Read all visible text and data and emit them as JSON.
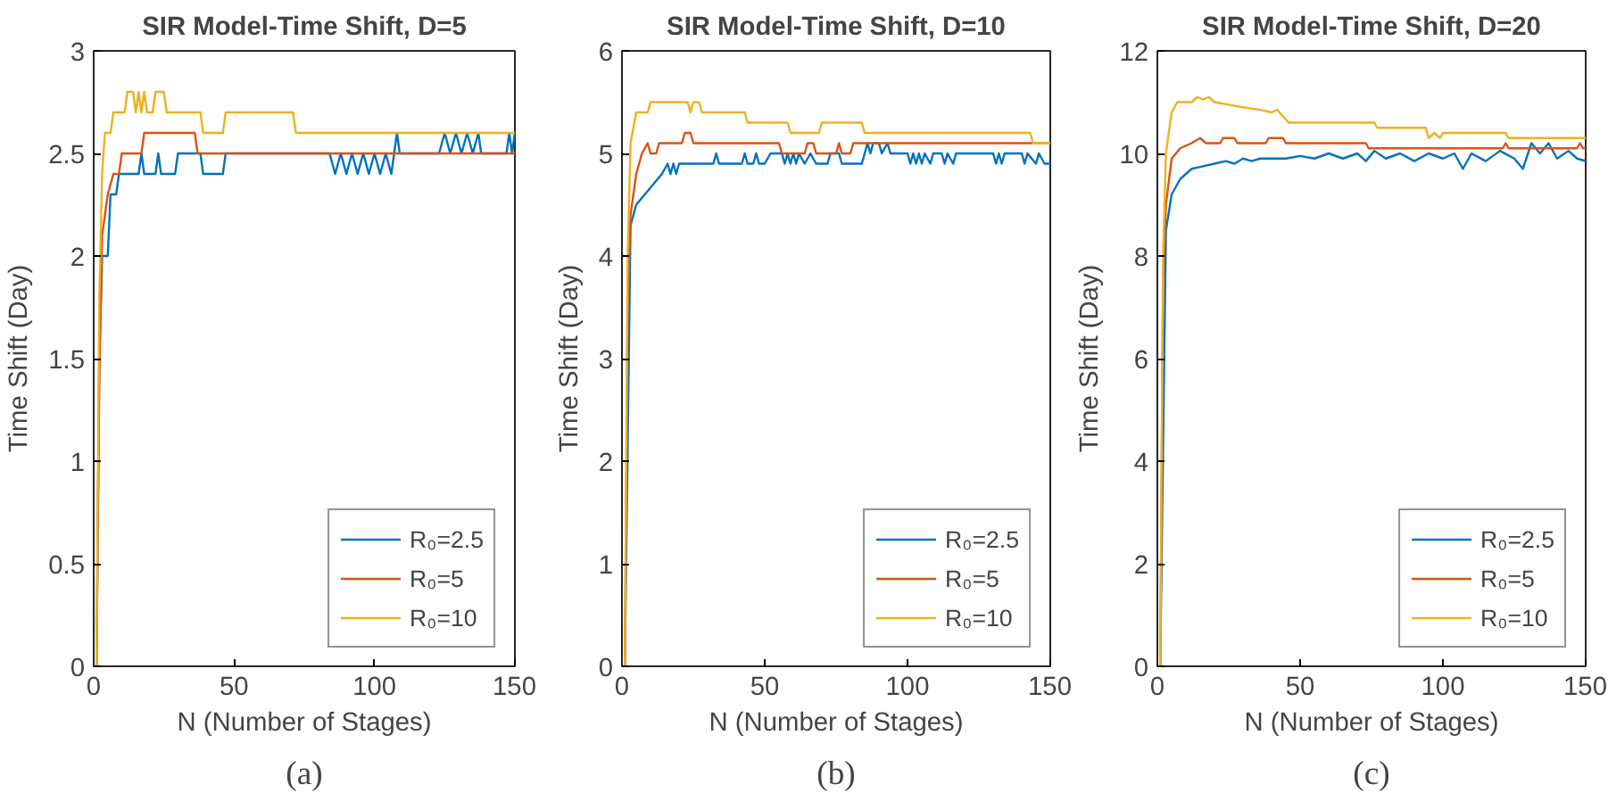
{
  "chart_data": [
    {
      "type": "line",
      "title": "SIR Model-Time Shift, D=5",
      "xlabel": "N (Number of Stages)",
      "ylabel": "Time Shift (Day)",
      "annotations": [
        "(a)"
      ],
      "xlim": [
        0,
        150
      ],
      "xticks": [
        0,
        50,
        100,
        150
      ],
      "ylim": [
        0,
        3
      ],
      "yticks": [
        0,
        0.5,
        1,
        1.5,
        2,
        2.5,
        3
      ],
      "grid": false,
      "legend": "bottom right",
      "marker": "none",
      "line_style": "solid",
      "series": [
        {
          "name": "R₀=2.5",
          "color": "#0072bd",
          "x": [
            1,
            2,
            3,
            5,
            6,
            8,
            9,
            16,
            17,
            18,
            22,
            23,
            24,
            29,
            30,
            38,
            39,
            46,
            47,
            84,
            86,
            88,
            90,
            92,
            94,
            96,
            98,
            100,
            102,
            104,
            106,
            107,
            108,
            109,
            123,
            125,
            127,
            129,
            131,
            133,
            135,
            137,
            138,
            147,
            148,
            149,
            150
          ],
          "values": [
            0,
            1.5,
            2.0,
            2.0,
            2.3,
            2.3,
            2.4,
            2.4,
            2.5,
            2.4,
            2.4,
            2.5,
            2.4,
            2.4,
            2.5,
            2.5,
            2.4,
            2.4,
            2.5,
            2.5,
            2.4,
            2.5,
            2.4,
            2.5,
            2.4,
            2.5,
            2.4,
            2.5,
            2.4,
            2.5,
            2.4,
            2.5,
            2.6,
            2.5,
            2.5,
            2.6,
            2.5,
            2.6,
            2.5,
            2.6,
            2.5,
            2.6,
            2.5,
            2.5,
            2.6,
            2.5,
            2.6
          ]
        },
        {
          "name": "R₀=5",
          "color": "#d95319",
          "x": [
            1,
            2,
            3,
            5,
            7,
            9,
            10,
            17,
            18,
            36,
            37,
            150
          ],
          "values": [
            0,
            1.4,
            2.1,
            2.3,
            2.4,
            2.4,
            2.5,
            2.5,
            2.6,
            2.6,
            2.5,
            2.5
          ]
        },
        {
          "name": "R₀=10",
          "color": "#edb120",
          "x": [
            1,
            2,
            3,
            4,
            6,
            7,
            11,
            12,
            14,
            15,
            16,
            17,
            18,
            19,
            21,
            22,
            25,
            26,
            38,
            39,
            46,
            47,
            71,
            72,
            150
          ],
          "values": [
            0,
            1.8,
            2.4,
            2.6,
            2.6,
            2.7,
            2.7,
            2.8,
            2.8,
            2.7,
            2.8,
            2.7,
            2.8,
            2.7,
            2.7,
            2.8,
            2.8,
            2.7,
            2.7,
            2.6,
            2.6,
            2.7,
            2.7,
            2.6,
            2.6
          ]
        }
      ]
    },
    {
      "type": "line",
      "title": "SIR Model-Time Shift, D=10",
      "xlabel": "N (Number of Stages)",
      "ylabel": "Time Shift (Day)",
      "annotations": [
        "(b)"
      ],
      "xlim": [
        0,
        150
      ],
      "xticks": [
        0,
        50,
        100,
        150
      ],
      "ylim": [
        0,
        6
      ],
      "yticks": [
        0,
        1,
        2,
        3,
        4,
        5,
        6
      ],
      "grid": false,
      "legend": "bottom right",
      "marker": "none",
      "line_style": "solid",
      "series": [
        {
          "name": "R₀=2.5",
          "color": "#0072bd",
          "x": [
            1,
            3,
            5,
            8,
            11,
            14,
            16,
            17,
            18,
            19,
            20,
            32,
            33,
            34,
            42,
            43,
            44,
            46,
            47,
            48,
            50,
            52,
            56,
            57,
            58,
            59,
            60,
            61,
            62,
            64,
            66,
            68,
            72,
            73,
            76,
            77,
            84,
            85,
            86,
            87,
            88,
            90,
            91,
            93,
            94,
            100,
            101,
            102,
            103,
            104,
            105,
            106,
            108,
            109,
            112,
            113,
            114,
            116,
            117,
            130,
            131,
            132,
            133,
            134,
            140,
            141,
            142,
            145,
            146,
            148,
            150
          ],
          "values": [
            0,
            4.3,
            4.5,
            4.6,
            4.7,
            4.8,
            4.9,
            4.8,
            4.9,
            4.8,
            4.9,
            4.9,
            5.0,
            4.9,
            4.9,
            5.0,
            4.9,
            4.9,
            5.0,
            4.9,
            4.9,
            5.0,
            5.0,
            4.9,
            5.0,
            4.9,
            5.0,
            4.9,
            5.0,
            4.9,
            5.0,
            4.9,
            4.9,
            5.0,
            5.0,
            4.9,
            4.9,
            5.0,
            5.1,
            5.0,
            5.1,
            5.1,
            5.0,
            5.1,
            5.0,
            5.0,
            4.9,
            5.0,
            4.9,
            5.0,
            4.9,
            5.0,
            4.9,
            5.0,
            5.0,
            4.9,
            5.0,
            4.9,
            5.0,
            5.0,
            4.9,
            5.0,
            4.9,
            5.0,
            5.0,
            4.9,
            5.0,
            4.9,
            5.0,
            4.9,
            4.9
          ]
        },
        {
          "name": "R₀=5",
          "color": "#d95319",
          "x": [
            1,
            2,
            3,
            5,
            7,
            9,
            10,
            12,
            13,
            21,
            22,
            24,
            25,
            55,
            56,
            64,
            65,
            67,
            68,
            75,
            76,
            77,
            80,
            81,
            150
          ],
          "values": [
            0,
            3.5,
            4.4,
            4.8,
            5.0,
            5.1,
            5.0,
            5.0,
            5.1,
            5.1,
            5.2,
            5.2,
            5.1,
            5.1,
            5.0,
            5.0,
            5.1,
            5.1,
            5.0,
            5.0,
            5.1,
            5.0,
            5.0,
            5.1,
            5.1
          ]
        },
        {
          "name": "R₀=10",
          "color": "#edb120",
          "x": [
            1,
            2,
            3,
            5,
            9,
            10,
            23,
            24,
            25,
            27,
            28,
            43,
            44,
            58,
            59,
            69,
            70,
            84,
            85,
            143,
            144,
            150
          ],
          "values": [
            0,
            4.0,
            5.1,
            5.4,
            5.4,
            5.5,
            5.5,
            5.4,
            5.5,
            5.5,
            5.4,
            5.4,
            5.3,
            5.3,
            5.2,
            5.2,
            5.3,
            5.3,
            5.2,
            5.2,
            5.1,
            5.1
          ]
        }
      ]
    },
    {
      "type": "line",
      "title": "SIR Model-Time Shift, D=20",
      "xlabel": "N (Number of Stages)",
      "ylabel": "Time Shift (Day)",
      "annotations": [
        "(c)"
      ],
      "xlim": [
        0,
        150
      ],
      "xticks": [
        0,
        50,
        100,
        150
      ],
      "ylim": [
        0,
        12
      ],
      "yticks": [
        0,
        2,
        4,
        6,
        8,
        10,
        12
      ],
      "grid": false,
      "legend": "bottom right",
      "marker": "none",
      "line_style": "solid",
      "series": [
        {
          "name": "R₀=2.5",
          "color": "#0072bd",
          "x": [
            1,
            3,
            5,
            8,
            12,
            16,
            20,
            24,
            27,
            30,
            33,
            36,
            45,
            50,
            55,
            60,
            65,
            70,
            73,
            76,
            80,
            85,
            90,
            95,
            100,
            104,
            107,
            110,
            115,
            120,
            125,
            128,
            131,
            134,
            137,
            140,
            144,
            147,
            150
          ],
          "values": [
            0,
            8.5,
            9.2,
            9.5,
            9.7,
            9.75,
            9.8,
            9.85,
            9.8,
            9.9,
            9.85,
            9.9,
            9.9,
            9.95,
            9.9,
            10.0,
            9.9,
            10.0,
            9.85,
            10.05,
            9.9,
            10.0,
            9.85,
            10.0,
            9.9,
            10.0,
            9.7,
            10.0,
            9.85,
            10.05,
            9.9,
            9.7,
            10.2,
            10.0,
            10.2,
            9.9,
            10.05,
            9.9,
            9.85
          ]
        },
        {
          "name": "R₀=5",
          "color": "#d95319",
          "x": [
            1,
            2,
            3,
            5,
            8,
            12,
            15,
            17,
            22,
            23,
            27,
            28,
            38,
            39,
            44,
            45,
            73,
            74,
            121,
            122,
            123,
            147,
            148,
            149,
            150
          ],
          "values": [
            0,
            7.5,
            9.0,
            9.9,
            10.1,
            10.2,
            10.3,
            10.2,
            10.2,
            10.3,
            10.3,
            10.2,
            10.2,
            10.3,
            10.3,
            10.2,
            10.2,
            10.1,
            10.1,
            10.2,
            10.1,
            10.1,
            10.2,
            10.1,
            10.1
          ]
        },
        {
          "name": "R₀=10",
          "color": "#edb120",
          "x": [
            1,
            2,
            3,
            5,
            7,
            12,
            14,
            16,
            18,
            20,
            25,
            30,
            36,
            40,
            42,
            46,
            76,
            77,
            94,
            95,
            97,
            99,
            100,
            122,
            123,
            150
          ],
          "values": [
            0,
            8.0,
            10.0,
            10.8,
            11.0,
            11.0,
            11.1,
            11.05,
            11.1,
            11.0,
            10.95,
            10.9,
            10.85,
            10.8,
            10.85,
            10.6,
            10.6,
            10.5,
            10.5,
            10.3,
            10.4,
            10.3,
            10.4,
            10.4,
            10.3,
            10.3
          ]
        }
      ]
    }
  ]
}
